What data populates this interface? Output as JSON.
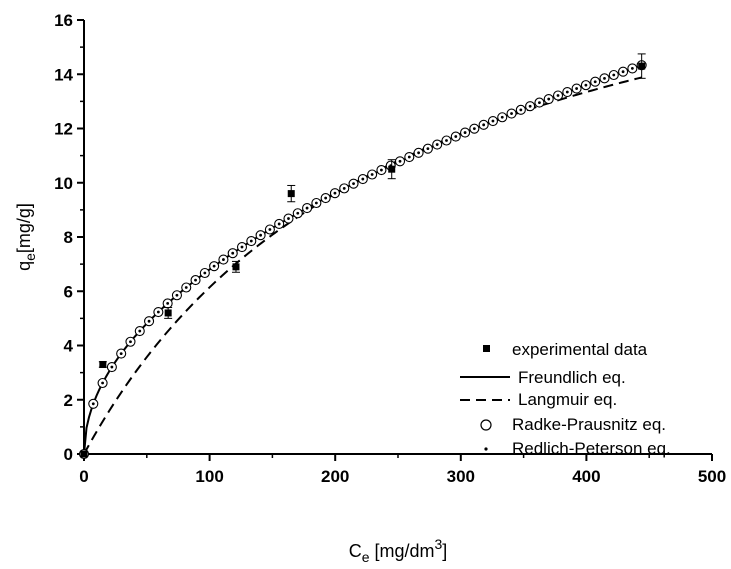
{
  "chart_data": {
    "type": "scatter",
    "xlabel": "C",
    "xlabel_sub": "e",
    "xlabel_rest": " [mg/dm",
    "xlabel_sup": "3",
    "xlabel_close": "]",
    "ylabel": "q",
    "ylabel_sub": "e",
    "ylabel_rest": "[mg/g]",
    "xlim": [
      0,
      500
    ],
    "ylim": [
      0,
      16
    ],
    "x_ticks": [
      0,
      100,
      200,
      300,
      400,
      500
    ],
    "y_ticks": [
      0,
      2,
      4,
      6,
      8,
      10,
      12,
      14,
      16
    ],
    "x_tick_labels": [
      "0",
      "100",
      "200",
      "300",
      "400",
      "500"
    ],
    "y_tick_labels": [
      "0",
      "2",
      "4",
      "6",
      "8",
      "10",
      "12",
      "14",
      "16"
    ],
    "grid": false,
    "legend_position": "bottom-right",
    "series": [
      {
        "name": "experimental data",
        "style": "square-marker",
        "points": [
          {
            "x": 0,
            "y": 0,
            "err": 0
          },
          {
            "x": 15,
            "y": 3.3,
            "err": 0.1
          },
          {
            "x": 67,
            "y": 5.2,
            "err": 0.2
          },
          {
            "x": 121,
            "y": 6.9,
            "err": 0.2
          },
          {
            "x": 165,
            "y": 9.6,
            "err": 0.3
          },
          {
            "x": 245,
            "y": 10.5,
            "err": 0.35
          },
          {
            "x": 444,
            "y": 14.3,
            "err": 0.45
          }
        ]
      },
      {
        "name": "Freundlich eq.",
        "style": "solid-line",
        "model": {
          "k": 0.6803,
          "n": 0.5
        }
      },
      {
        "name": "Langmuir eq.",
        "style": "dashed-line",
        "model": {
          "qmax": 21.9,
          "kl": 0.0039
        }
      },
      {
        "name": "Radke-Prausnitz eq.",
        "style": "open-circle-marker",
        "model": {
          "k": 0.6803,
          "n": 0.5
        },
        "x_samples": {
          "start": 0,
          "end": 444,
          "step": 7.4
        }
      },
      {
        "name": "Redlich-Peterson eq.",
        "style": "dot-marker",
        "model": {
          "k": 0.6803,
          "n": 0.5
        },
        "x_samples": {
          "start": 0,
          "end": 444,
          "step": 7.4
        }
      }
    ]
  }
}
